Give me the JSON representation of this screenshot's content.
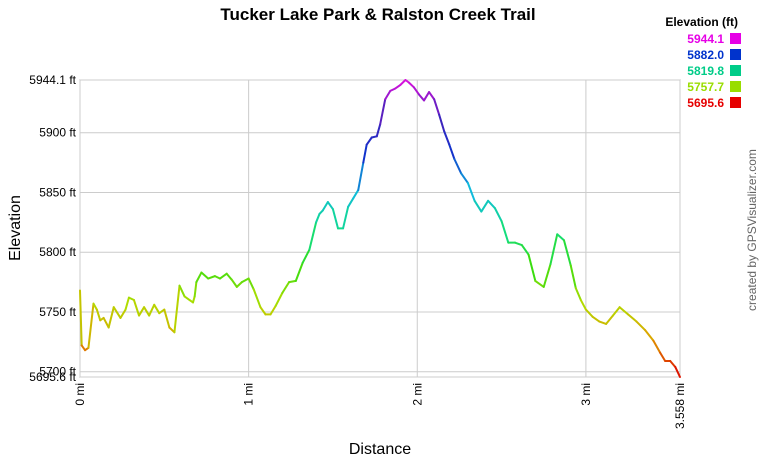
{
  "chart_data": {
    "type": "line",
    "title": "Tucker Lake Park & Ralston Creek Trail",
    "xlabel": "Distance",
    "ylabel": "Elevation",
    "credit": "created by GPSVisualizer.com",
    "xlim": [
      0,
      3.558
    ],
    "ylim": [
      5695.6,
      5944.1
    ],
    "x_ticks": [
      {
        "value": 0,
        "label": "0 mi"
      },
      {
        "value": 1,
        "label": "1 mi"
      },
      {
        "value": 2,
        "label": "2 mi"
      },
      {
        "value": 3,
        "label": "3 mi"
      },
      {
        "value": 3.558,
        "label": "3.558 mi"
      }
    ],
    "y_ticks": [
      {
        "value": 5695.6,
        "label": "5695.6 ft"
      },
      {
        "value": 5700,
        "label": "5700 ft"
      },
      {
        "value": 5750,
        "label": "5750 ft"
      },
      {
        "value": 5800,
        "label": "5800 ft"
      },
      {
        "value": 5850,
        "label": "5850 ft"
      },
      {
        "value": 5900,
        "label": "5900 ft"
      },
      {
        "value": 5944.1,
        "label": "5944.1 ft"
      }
    ],
    "grid": true,
    "legend": {
      "title": "Elevation (ft)",
      "placement": "top-right",
      "entries": [
        {
          "label": "5944.1",
          "color": "#e600e6"
        },
        {
          "label": "5882.0",
          "color": "#0033cc"
        },
        {
          "label": "5819.8",
          "color": "#00cc88"
        },
        {
          "label": "5757.7",
          "color": "#99dd00"
        },
        {
          "label": "5695.6",
          "color": "#e60000"
        }
      ]
    },
    "colorscale": [
      {
        "value": 5695.6,
        "color": "#dd0000"
      },
      {
        "value": 5726.6,
        "color": "#e0a000"
      },
      {
        "value": 5757.7,
        "color": "#b0dd00"
      },
      {
        "value": 5788.8,
        "color": "#33dd11"
      },
      {
        "value": 5819.8,
        "color": "#11dd88"
      },
      {
        "value": 5850.9,
        "color": "#11bbdd"
      },
      {
        "value": 5882.0,
        "color": "#1133cc"
      },
      {
        "value": 5913.0,
        "color": "#4422bb"
      },
      {
        "value": 5944.1,
        "color": "#dd11dd"
      }
    ],
    "series": [
      {
        "x": [
          0,
          0.01,
          0.03,
          0.05,
          0.08,
          0.1,
          0.12,
          0.14,
          0.17,
          0.2,
          0.24,
          0.27,
          0.29,
          0.32,
          0.35,
          0.38,
          0.41,
          0.44,
          0.47,
          0.5,
          0.53,
          0.56,
          0.59,
          0.62,
          0.65,
          0.67,
          0.68,
          0.69,
          0.72,
          0.76,
          0.8,
          0.83,
          0.87,
          0.9,
          0.93,
          0.96,
          1.0,
          1.03,
          1.07,
          1.1,
          1.13,
          1.16,
          1.2,
          1.24,
          1.28,
          1.32,
          1.36,
          1.4,
          1.42,
          1.44,
          1.47,
          1.5,
          1.53,
          1.56,
          1.59,
          1.62,
          1.65,
          1.68,
          1.7,
          1.73,
          1.76,
          1.78,
          1.81,
          1.84,
          1.87,
          1.9,
          1.93,
          1.95,
          1.98,
          2.01,
          2.04,
          2.07,
          2.1,
          2.13,
          2.16,
          2.19,
          2.22,
          2.26,
          2.3,
          2.34,
          2.38,
          2.42,
          2.46,
          2.5,
          2.54,
          2.58,
          2.62,
          2.66,
          2.7,
          2.75,
          2.79,
          2.83,
          2.87,
          2.91,
          2.94,
          2.97,
          3.0,
          3.04,
          3.08,
          3.12,
          3.16,
          3.2,
          3.25,
          3.3,
          3.35,
          3.4,
          3.44,
          3.47,
          3.5,
          3.53,
          3.558
        ],
        "y": [
          5768,
          5722,
          5718,
          5720,
          5757,
          5752,
          5743,
          5745,
          5737,
          5754,
          5745,
          5752,
          5762,
          5760,
          5747,
          5754,
          5747,
          5756,
          5749,
          5752,
          5737,
          5733,
          5772,
          5763,
          5760,
          5758,
          5763,
          5775,
          5783,
          5778,
          5780,
          5778,
          5782,
          5777,
          5771,
          5775,
          5778,
          5769,
          5754,
          5748,
          5748,
          5755,
          5766,
          5775,
          5776,
          5791,
          5802,
          5825,
          5832,
          5835,
          5842,
          5836,
          5820,
          5820,
          5838,
          5845,
          5852,
          5875,
          5890,
          5896,
          5897,
          5907,
          5928,
          5935,
          5937,
          5940,
          5944.1,
          5942,
          5938,
          5932,
          5927,
          5934,
          5928,
          5915,
          5901,
          5890,
          5878,
          5866,
          5858,
          5843,
          5834,
          5843,
          5837,
          5826,
          5808,
          5808,
          5806,
          5798,
          5776,
          5771,
          5790,
          5815,
          5810,
          5789,
          5770,
          5760,
          5752,
          5746,
          5742,
          5740,
          5747,
          5754,
          5748,
          5742,
          5735,
          5726,
          5716,
          5709,
          5709,
          5704,
          5695.6
        ]
      }
    ]
  }
}
